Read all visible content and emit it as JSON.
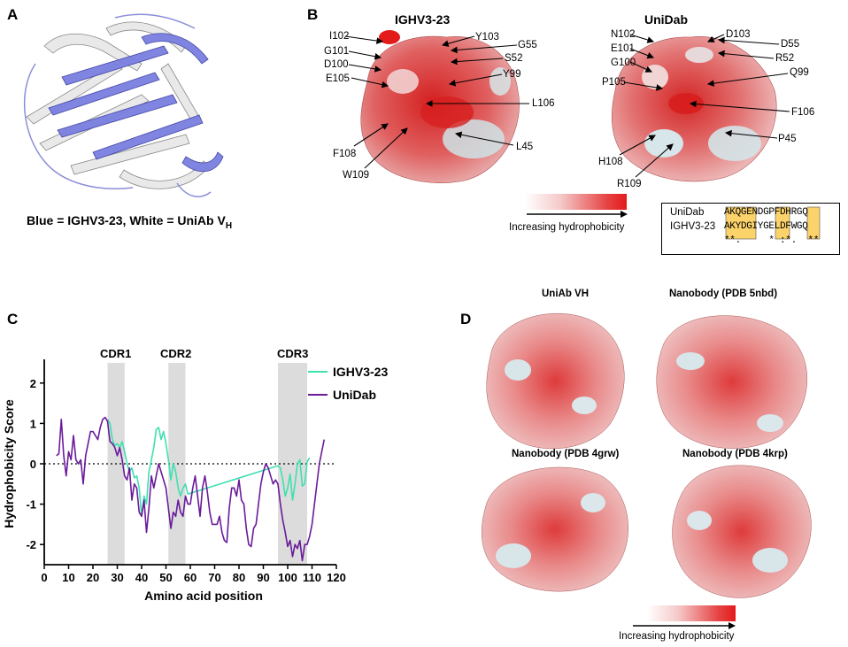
{
  "panels": {
    "A": {
      "letter": "A",
      "caption_prefix": "Blue = IGHV3-23, White = UniAb V",
      "caption_sub": "H"
    },
    "B": {
      "letter": "B",
      "left_title": "IGHV3-23",
      "right_title": "UniDab",
      "left_labels": [
        "I102",
        "G101",
        "D100",
        "E105",
        "Y103",
        "G55",
        "S52",
        "Y99",
        "L106",
        "F108",
        "W109",
        "L45"
      ],
      "right_labels": [
        "N102",
        "E101",
        "G100",
        "P105",
        "D103",
        "D55",
        "R52",
        "Q99",
        "F106",
        "P45",
        "H108",
        "R109"
      ],
      "gradient_label": "Increasing hydrophobicity",
      "alignment": {
        "row1_name": "UniDab",
        "row1_seq": "AKQGENDGPFDHRGQ",
        "row2_name": "IGHV3-23",
        "row2_seq": "AKYDGIYGELDFWGQ",
        "row3_seq": "**.     * :*.  **"
      }
    },
    "C": {
      "letter": "C",
      "cdr_labels": [
        "CDR1",
        "CDR2",
        "CDR3"
      ]
    },
    "D": {
      "letter": "D",
      "titles": [
        "UniAb VH",
        "Nanobody (PDB 5nbd)",
        "Nanobody (PDB 4grw)",
        "Nanobody (PDB 4krp)"
      ],
      "gradient_label": "Increasing hydrophobicity"
    }
  },
  "chart_data": {
    "type": "line",
    "xlabel": "Amino acid position",
    "ylabel": "Hydrophobicity Score",
    "xlim": [
      0,
      120
    ],
    "ylim": [
      -2.5,
      2.5
    ],
    "xticks": [
      0,
      10,
      20,
      30,
      40,
      50,
      60,
      70,
      80,
      90,
      100,
      110,
      120
    ],
    "yticks": [
      -2,
      -1,
      0,
      1,
      2
    ],
    "zero_line": "dotted",
    "legend_placement": "top-right",
    "shaded_regions": [
      {
        "label": "CDR1",
        "x": [
          26,
          33
        ]
      },
      {
        "label": "CDR2",
        "x": [
          51,
          58
        ]
      },
      {
        "label": "CDR3",
        "x": [
          96,
          108
        ]
      }
    ],
    "series": [
      {
        "name": "IGHV3-23",
        "color": "#3fe0b0",
        "x": [
          26,
          27,
          28,
          29,
          30,
          31,
          32,
          33,
          34,
          35,
          36,
          37,
          38,
          39,
          40,
          41,
          42,
          43,
          44,
          45,
          46,
          47,
          48,
          49,
          50,
          51,
          52,
          53,
          54,
          55,
          56,
          57,
          58,
          59,
          96,
          97,
          98,
          99,
          100,
          101,
          102,
          103,
          104,
          105,
          106,
          107,
          108,
          109
        ],
        "y": [
          1.1,
          1.0,
          0.6,
          0.45,
          0.5,
          0.4,
          0.55,
          0.3,
          0.0,
          -0.2,
          -0.1,
          -0.35,
          -0.3,
          -0.6,
          -1.3,
          -0.8,
          -1.0,
          -0.2,
          0.1,
          0.4,
          0.85,
          0.9,
          0.6,
          0.8,
          0.5,
          0.1,
          -0.4,
          0.0,
          -0.2,
          -0.6,
          -0.8,
          -0.6,
          -0.5,
          -0.75,
          -0.05,
          -0.1,
          -0.4,
          -0.8,
          -0.6,
          -0.25,
          -0.9,
          -0.5,
          0.0,
          0.1,
          -0.55,
          -0.5,
          0.05,
          0.15
        ]
      },
      {
        "name": "UniDab",
        "color": "#6a1b9a",
        "x": [
          5,
          6,
          7,
          8,
          9,
          10,
          11,
          12,
          13,
          14,
          15,
          16,
          17,
          18,
          19,
          20,
          21,
          22,
          23,
          24,
          25,
          26,
          27,
          28,
          29,
          30,
          31,
          32,
          33,
          34,
          35,
          36,
          37,
          38,
          39,
          40,
          41,
          42,
          43,
          44,
          45,
          46,
          47,
          48,
          49,
          50,
          51,
          52,
          53,
          54,
          55,
          56,
          57,
          58,
          59,
          60,
          61,
          62,
          63,
          64,
          65,
          66,
          67,
          68,
          69,
          70,
          71,
          72,
          73,
          74,
          75,
          76,
          77,
          78,
          79,
          80,
          81,
          82,
          83,
          84,
          85,
          86,
          87,
          88,
          89,
          90,
          91,
          92,
          93,
          94,
          95,
          96,
          97,
          98,
          99,
          100,
          101,
          102,
          103,
          104,
          105,
          106,
          107,
          108,
          109,
          110,
          111,
          112,
          113,
          114,
          115
        ],
        "y": [
          0.2,
          0.25,
          1.1,
          0.2,
          -0.3,
          0.3,
          0.1,
          0.7,
          0.1,
          0.0,
          0.1,
          -0.5,
          0.2,
          0.5,
          0.8,
          0.8,
          0.7,
          0.6,
          0.9,
          1.1,
          1.15,
          1.05,
          0.55,
          0.5,
          0.4,
          0.2,
          0.4,
          0.1,
          -0.3,
          -0.4,
          -0.1,
          -0.9,
          -0.5,
          -0.6,
          -1.2,
          -1.3,
          -0.9,
          -1.7,
          -1.1,
          -0.3,
          -0.6,
          -0.3,
          0.0,
          -0.2,
          -0.4,
          -0.6,
          -1.1,
          -1.6,
          -1.2,
          -1.3,
          -0.9,
          -1.2,
          -1.3,
          -0.8,
          -1.0,
          -1.0,
          -0.6,
          -0.3,
          -0.8,
          -1.3,
          -0.6,
          -0.3,
          -0.7,
          -1.2,
          -1.5,
          -1.5,
          -1.5,
          -1.3,
          -1.7,
          -1.9,
          -1.95,
          -1.1,
          -0.6,
          -0.6,
          -0.8,
          -0.4,
          -0.9,
          -1.0,
          -1.6,
          -2.0,
          -2.05,
          -1.6,
          -1.5,
          -1.0,
          -0.5,
          -0.2,
          0.0,
          -0.1,
          -0.3,
          -0.5,
          -0.4,
          -0.5,
          -1.0,
          -1.4,
          -1.7,
          -2.05,
          -1.9,
          -2.3,
          -2.0,
          -2.1,
          -1.9,
          -2.4,
          -2.0,
          -2.0,
          -1.8,
          -1.5,
          -1.0,
          -0.5,
          0.0,
          0.3,
          0.6
        ]
      }
    ]
  }
}
